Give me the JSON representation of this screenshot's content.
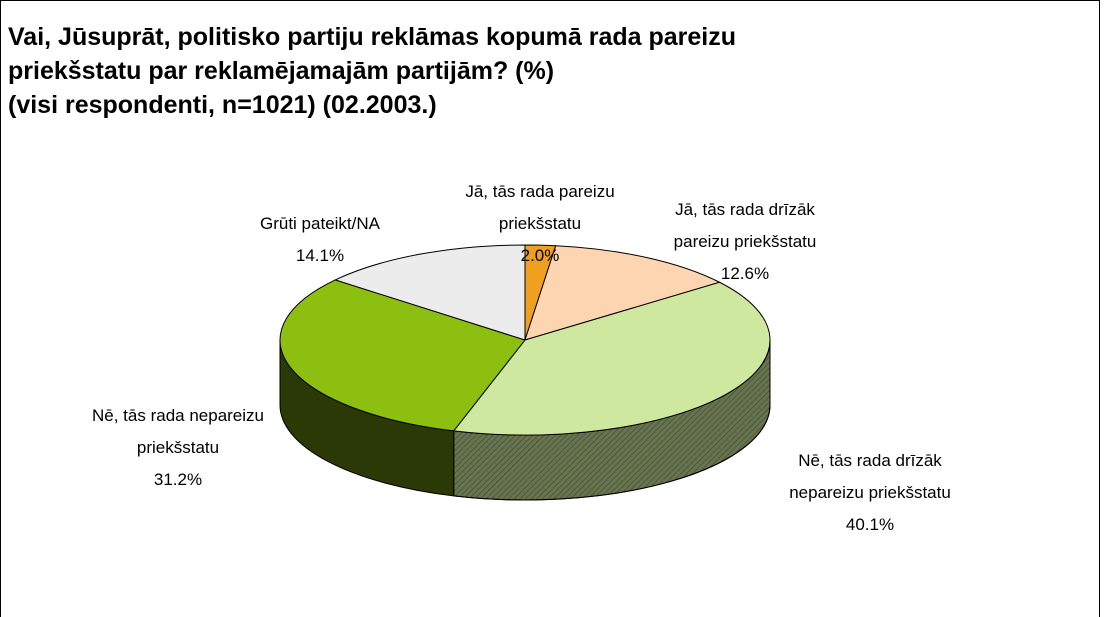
{
  "chart_data": {
    "type": "pie",
    "title": "Vai, Jūsuprāt, politisko partiju reklāmas kopumā rada pareizu\npriekšstatu par reklamējamajām partijām? (%)\n(visi respondenti, n=1021) (02.2003.)",
    "categories": [
      "Jā, tās rada pareizu priekšstatu",
      "Jā, tās rada drīzāk pareizu priekšstatu",
      "Nē, tās rada drīzāk nepareizu priekšstatu",
      "Nē, tās rada nepareizu priekšstatu",
      "Grūti pateikt/NA"
    ],
    "values": [
      2.0,
      12.6,
      40.1,
      31.2,
      14.1
    ],
    "value_labels": [
      "2.0%",
      "12.6%",
      "40.1%",
      "31.2%",
      "14.1%"
    ],
    "colors": [
      "#f0a020",
      "#fdd5b0",
      "#cfe8a0",
      "#8cbf10",
      "#ececec"
    ]
  }
}
